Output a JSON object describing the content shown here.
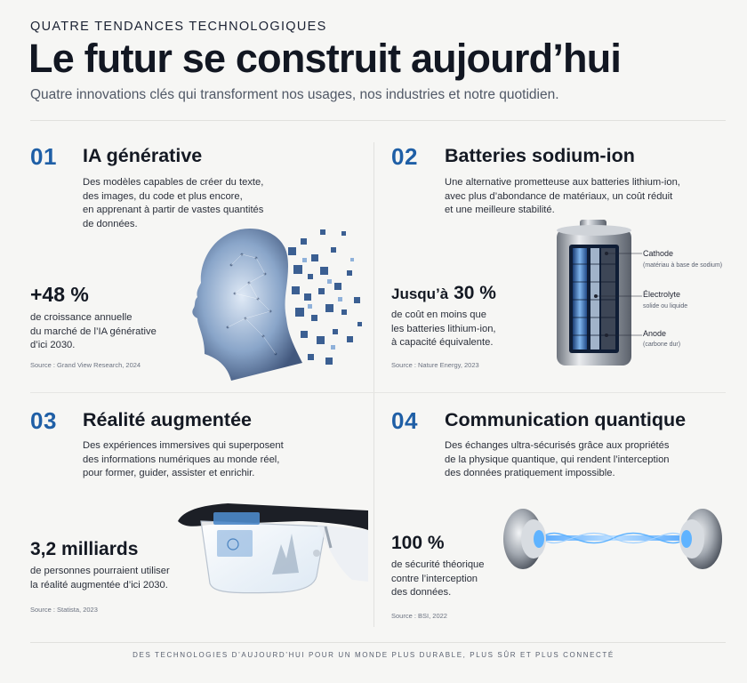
{
  "header": {
    "kicker": "QUATRE TENDANCES TECHNOLOGIQUES",
    "title": "Le futur se construit aujourd’hui",
    "subtitle": "Quatre innovations clés qui transforment nos usages, nos industries et notre quotidien."
  },
  "cards": [
    {
      "number": "01",
      "title": "IA générative",
      "description_lines": [
        "Des modèles capables de créer du texte,",
        "des images, du code et plus encore,",
        "en apprenant à partir de vastes quantités",
        "de données."
      ],
      "stat": "+48 %",
      "stat_lines": [
        "de croissance annuelle",
        "du marché de l’IA générative",
        "d’ici 2030."
      ],
      "source": "Source : Grand View Research, 2024",
      "illustration_icon": "ai-head-pixel-icon"
    },
    {
      "number": "02",
      "title": "Batteries sodium-ion",
      "description_lines": [
        "Une alternative prometteuse aux batteries lithium-ion,",
        "avec plus d’abondance de matériaux, un coût réduit",
        "et une meilleure stabilité."
      ],
      "stat_prefix": "Jusqu’à",
      "stat": "30 %",
      "stat_lines": [
        "de coût en moins que",
        "les batteries lithium-ion,",
        "à capacité équivalente."
      ],
      "source": "Source : Nature Energy, 2023",
      "illustration_icon": "battery-icon",
      "battery_labels": [
        {
          "label": "Cathode",
          "sub": "(matériau à base de sodium)"
        },
        {
          "label": "Électrolyte",
          "sub": "solide ou liquide"
        },
        {
          "label": "Anode",
          "sub": "(carbone dur)"
        }
      ]
    },
    {
      "number": "03",
      "title": "Réalité augmentée",
      "description_lines": [
        "Des expériences immersives qui superposent",
        "des informations numériques au monde réel,",
        "pour former, guider, assister et enrichir."
      ],
      "stat": "3,2 milliards",
      "stat_lines": [
        "de personnes pourraient utiliser",
        "la réalité augmentée d’ici 2030."
      ],
      "source": "Source : Statista, 2023",
      "illustration_icon": "ar-glasses-icon"
    },
    {
      "number": "04",
      "title": "Communication quantique",
      "description_lines": [
        "Des échanges ultra-sécurisés grâce aux propriétés",
        "de la physique quantique, qui rendent l’interception",
        "des données pratiquement impossible."
      ],
      "stat": "100 %",
      "stat_lines": [
        "de sécurité théorique",
        "contre l’interception",
        "des données."
      ],
      "source": "Source : BSI, 2022",
      "illustration_icon": "quantum-link-icon"
    }
  ],
  "footer": "DES TECHNOLOGIES D’AUJOURD’HUI POUR UN MONDE PLUS DURABLE, PLUS SÛR ET PLUS CONNECTÉ",
  "colors": {
    "accent": "#1f5fa6",
    "background": "#f6f6f4",
    "text": "#141923"
  }
}
